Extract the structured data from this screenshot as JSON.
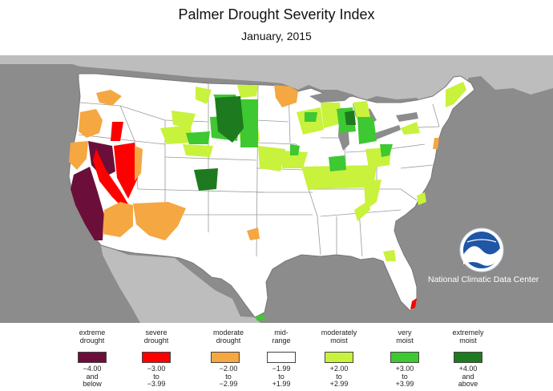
{
  "header": {
    "title": "Palmer Drought Severity Index",
    "subtitle": "January, 2015"
  },
  "agency": {
    "name": "National Climatic Data Center",
    "logo_text": "NOAA"
  },
  "colors": {
    "extreme_drought": "#6b0f3a",
    "severe_drought": "#ff0000",
    "moderate_drought": "#f5a742",
    "mid_range": "#ffffff",
    "moderately_moist": "#c8f23c",
    "very_moist": "#3ec831",
    "extremely_moist": "#1e7a1e",
    "outside": "#8c8c8c",
    "boundary": "#9a9a9a"
  },
  "legend": [
    {
      "category": "extreme drought",
      "range": "−4.00 and below",
      "color": "#6b0f3a"
    },
    {
      "category": "severe drought",
      "range": "−3.00 to −3.99",
      "color": "#ff0000"
    },
    {
      "category": "moderate drought",
      "range": "−2.00 to −2.99",
      "color": "#f5a742"
    },
    {
      "category": "mid- range",
      "range": "−1.99 to +1.99",
      "color": "#ffffff"
    },
    {
      "category": "moderately moist",
      "range": "+2.00 to +2.99",
      "color": "#c8f23c"
    },
    {
      "category": "very moist",
      "range": "+3.00 to +3.99",
      "color": "#3ec831"
    },
    {
      "category": "extremely moist",
      "range": "+4.00 and above",
      "color": "#1e7a1e"
    }
  ]
}
